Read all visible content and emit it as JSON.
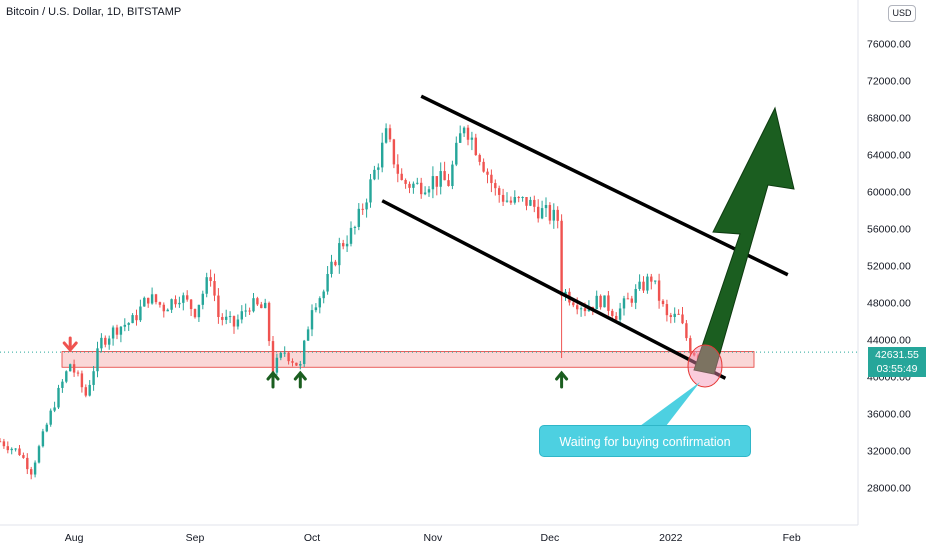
{
  "header": {
    "title": "Bitcoin / U.S. Dollar, 1D, BITSTAMP",
    "currency": "USD"
  },
  "price_badge": {
    "price": "42631.55",
    "countdown": "03:55:49"
  },
  "callout": {
    "text": "Waiting for buying confirmation"
  },
  "colors": {
    "up": "#26a69a",
    "down": "#ef5350",
    "zone_fill": "#f8c9c9",
    "zone_stroke": "#e53935",
    "arrow": "#1b5e20",
    "callout": "#4dd0e1",
    "down_arrow": "#ef5350",
    "up_arrow": "#1b5e20"
  },
  "chart_data": {
    "type": "candlestick",
    "title": "Bitcoin / U.S. Dollar, 1D, BITSTAMP",
    "ylim": [
      26000,
      78000
    ],
    "y_ticks": [
      "28000.00",
      "32000.00",
      "36000.00",
      "40000.00",
      "44000.00",
      "48000.00",
      "52000.00",
      "56000.00",
      "60000.00",
      "64000.00",
      "68000.00",
      "72000.00",
      "76000.00"
    ],
    "x_ticks": [
      "Aug",
      "Sep",
      "Oct",
      "Nov",
      "Dec",
      "2022",
      "Feb"
    ],
    "x_range": [
      "2021-07-13",
      "2022-02-18"
    ],
    "last_price": 42631.55,
    "close_series": [
      [
        "2021-07-13",
        33000
      ],
      [
        "2021-07-18",
        31800
      ],
      [
        "2021-07-21",
        29800
      ],
      [
        "2021-07-24",
        33500
      ],
      [
        "2021-07-27",
        37200
      ],
      [
        "2021-07-31",
        41400
      ],
      [
        "2021-08-04",
        38000
      ],
      [
        "2021-08-08",
        43800
      ],
      [
        "2021-08-12",
        45300
      ],
      [
        "2021-08-16",
        46000
      ],
      [
        "2021-08-20",
        48600
      ],
      [
        "2021-08-24",
        47500
      ],
      [
        "2021-08-28",
        48800
      ],
      [
        "2021-09-01",
        47100
      ],
      [
        "2021-09-05",
        51000
      ],
      [
        "2021-09-07",
        46500
      ],
      [
        "2021-09-11",
        45500
      ],
      [
        "2021-09-15",
        47800
      ],
      [
        "2021-09-19",
        47200
      ],
      [
        "2021-09-21",
        40800
      ],
      [
        "2021-09-24",
        42700
      ],
      [
        "2021-09-28",
        41000
      ],
      [
        "2021-10-01",
        47800
      ],
      [
        "2021-10-04",
        49200
      ],
      [
        "2021-10-08",
        54000
      ],
      [
        "2021-10-12",
        56000
      ],
      [
        "2021-10-16",
        60800
      ],
      [
        "2021-10-20",
        66000
      ],
      [
        "2021-10-24",
        61000
      ],
      [
        "2021-10-28",
        60600
      ],
      [
        "2021-11-01",
        61300
      ],
      [
        "2021-11-05",
        61000
      ],
      [
        "2021-11-09",
        67500
      ],
      [
        "2021-11-13",
        64000
      ],
      [
        "2021-11-17",
        60000
      ],
      [
        "2021-11-21",
        58800
      ],
      [
        "2021-11-25",
        58900
      ],
      [
        "2021-11-29",
        57800
      ],
      [
        "2021-12-03",
        57000
      ],
      [
        "2021-12-04",
        49300
      ],
      [
        "2021-12-10",
        47500
      ],
      [
        "2021-12-14",
        48300
      ],
      [
        "2021-12-18",
        46800
      ],
      [
        "2021-12-22",
        48600
      ],
      [
        "2021-12-27",
        50700
      ],
      [
        "2021-12-31",
        46300
      ],
      [
        "2022-01-03",
        46400
      ],
      [
        "2022-01-06",
        43100
      ],
      [
        "2022-01-09",
        41800
      ],
      [
        "2022-01-11",
        42631
      ]
    ],
    "annotations": {
      "support_zone": [
        41000,
        42700
      ],
      "channel_upper": [
        [
          "2021-10-29",
          70300
        ],
        [
          "2022-01-31",
          51000
        ]
      ],
      "channel_lower": [
        [
          "2021-10-19",
          59000
        ],
        [
          "2022-01-15",
          39800
        ]
      ],
      "down_arrow_date": "2021-07-31",
      "up_arrow_dates": [
        "2021-09-21",
        "2021-09-28",
        "2021-12-04"
      ]
    }
  }
}
